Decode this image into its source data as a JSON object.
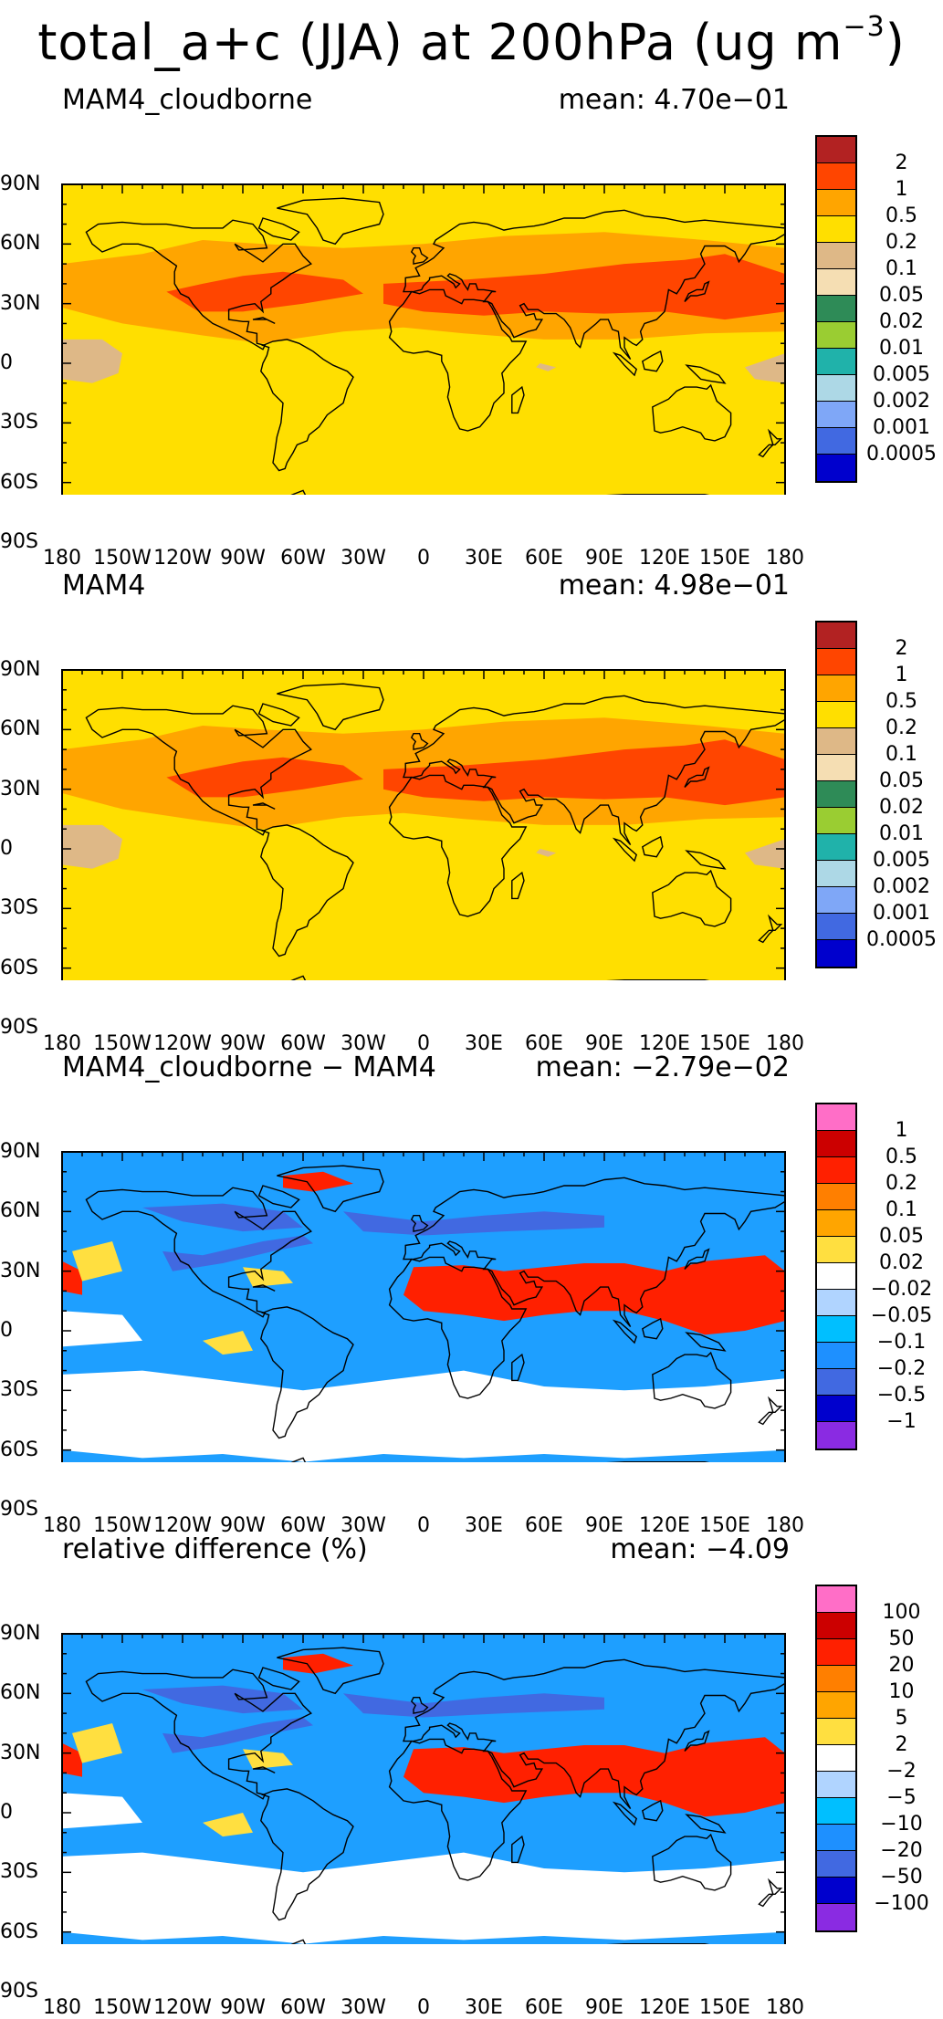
{
  "title": {
    "main": "total_a+c (JJA) at 200hPa (ug m",
    "exponent": "−3",
    "close": ")"
  },
  "axes": {
    "lat_labels": [
      "90N",
      "60N",
      "30N",
      "0",
      "30S",
      "60S",
      "90S"
    ],
    "lon_labels": [
      "180",
      "150W",
      "120W",
      "90W",
      "60W",
      "30W",
      "0",
      "30E",
      "60E",
      "90E",
      "120E",
      "150E",
      "180"
    ]
  },
  "panels": [
    {
      "name": "MAM4_cloudborne",
      "mean": "mean: 4.70e−01",
      "background_color": "#FFDF00",
      "colorbar": {
        "colors": [
          "#B22222",
          "#FF4500",
          "#FFA500",
          "#FFDF00",
          "#DEB887",
          "#F5DEB3",
          "#2E8B57",
          "#9ACD32",
          "#20B2AA",
          "#ADD8E6",
          "#7FA7F7",
          "#4169E1",
          "#0000CD"
        ],
        "labels": [
          "2",
          "1",
          "0.5",
          "0.2",
          "0.1",
          "0.05",
          "0.02",
          "0.01",
          "0.005",
          "0.002",
          "0.001",
          "0.0005"
        ]
      },
      "regions": [
        {
          "color": "#FFA500",
          "kind": "band-north"
        },
        {
          "color": "#FF4500",
          "kind": "core-north"
        },
        {
          "color": "#DEB887",
          "kind": "pacific-tan"
        }
      ]
    },
    {
      "name": "MAM4",
      "mean": "mean: 4.98e−01",
      "background_color": "#FFDF00",
      "colorbar": {
        "colors": [
          "#B22222",
          "#FF4500",
          "#FFA500",
          "#FFDF00",
          "#DEB887",
          "#F5DEB3",
          "#2E8B57",
          "#9ACD32",
          "#20B2AA",
          "#ADD8E6",
          "#7FA7F7",
          "#4169E1",
          "#0000CD"
        ],
        "labels": [
          "2",
          "1",
          "0.5",
          "0.2",
          "0.1",
          "0.05",
          "0.02",
          "0.01",
          "0.005",
          "0.002",
          "0.001",
          "0.0005"
        ]
      },
      "regions": [
        {
          "color": "#FFA500",
          "kind": "band-north"
        },
        {
          "color": "#FF4500",
          "kind": "core-north"
        },
        {
          "color": "#DEB887",
          "kind": "pacific-tan"
        }
      ]
    },
    {
      "name": "MAM4_cloudborne − MAM4",
      "mean": "mean: −2.79e−02",
      "background_color": "#1E9FFF",
      "colorbar": {
        "colors": [
          "#FF6EC7",
          "#CC0000",
          "#FF2000",
          "#FF7F00",
          "#FFA500",
          "#FFDF40",
          "#FFFFFF",
          "#B0D4FF",
          "#00BFFF",
          "#1E90FF",
          "#4169E1",
          "#0000CD",
          "#8A2BE2"
        ],
        "labels": [
          "1",
          "0.5",
          "0.2",
          "0.1",
          "0.05",
          "0.02",
          "−0.02",
          "−0.05",
          "−0.1",
          "−0.2",
          "−0.5",
          "−1"
        ]
      },
      "regions": [
        {
          "color": "#FF2000",
          "kind": "africa-asia-red"
        },
        {
          "color": "#FFDF40",
          "kind": "scattered-yellow"
        },
        {
          "color": "#FFFFFF",
          "kind": "south-white"
        },
        {
          "color": "#4169E1",
          "kind": "north-dark-blue"
        }
      ]
    },
    {
      "name": "relative difference (%)",
      "mean": "mean: −4.09",
      "background_color": "#1E9FFF",
      "colorbar": {
        "colors": [
          "#FF6EC7",
          "#CC0000",
          "#FF2000",
          "#FF7F00",
          "#FFA500",
          "#FFDF40",
          "#FFFFFF",
          "#B0D4FF",
          "#00BFFF",
          "#1E90FF",
          "#4169E1",
          "#0000CD",
          "#8A2BE2"
        ],
        "labels": [
          "100",
          "50",
          "20",
          "10",
          "5",
          "2",
          "−2",
          "−5",
          "−10",
          "−20",
          "−50",
          "−100"
        ]
      },
      "regions": [
        {
          "color": "#FF2000",
          "kind": "africa-asia-red"
        },
        {
          "color": "#FFDF40",
          "kind": "scattered-yellow"
        },
        {
          "color": "#FFFFFF",
          "kind": "south-white"
        },
        {
          "color": "#4169E1",
          "kind": "north-dark-blue"
        }
      ]
    }
  ]
}
